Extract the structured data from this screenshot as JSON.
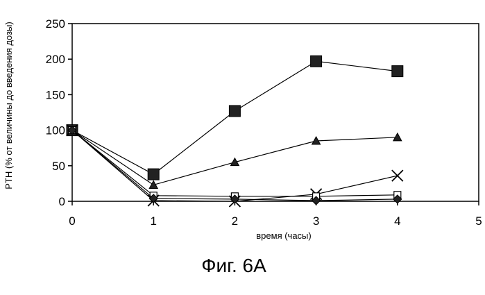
{
  "chart_data": {
    "type": "line",
    "xlabel": "время (часы)",
    "ylabel": "PTH (% от величины до введения дозы)",
    "caption": "Фиг. 6A",
    "xlim": [
      0,
      5
    ],
    "ylim": [
      0,
      250
    ],
    "x_ticks": [
      "0",
      "1",
      "2",
      "3",
      "4",
      "5"
    ],
    "y_ticks": [
      "0",
      "50",
      "100",
      "150",
      "200",
      "250"
    ],
    "grid": false,
    "legend": false,
    "series": [
      {
        "marker": "filled-square",
        "color": "#000000",
        "x": [
          0,
          1,
          2,
          3,
          4
        ],
        "y": [
          100,
          38,
          127,
          197,
          183
        ]
      },
      {
        "marker": "filled-triangle",
        "color": "#000000",
        "x": [
          0,
          1,
          2,
          3,
          4
        ],
        "y": [
          100,
          23,
          55,
          85,
          90
        ]
      },
      {
        "marker": "cross",
        "color": "#000000",
        "x": [
          0,
          1,
          2,
          3,
          4
        ],
        "y": [
          100,
          1,
          0,
          10,
          36
        ]
      },
      {
        "marker": "open-square",
        "color": "#000000",
        "x": [
          0,
          1,
          2,
          3,
          4
        ],
        "y": [
          100,
          8,
          7,
          7,
          9
        ]
      },
      {
        "marker": "diamond",
        "color": "#000000",
        "x": [
          0,
          1,
          2,
          3,
          4
        ],
        "y": [
          100,
          4,
          3,
          1,
          3
        ]
      }
    ]
  }
}
